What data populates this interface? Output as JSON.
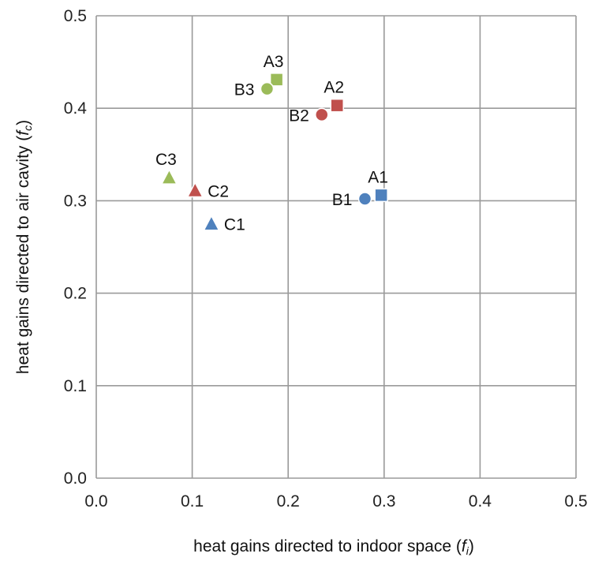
{
  "chart_data": {
    "type": "scatter",
    "xlabel": "heat gains directed to indoor space (",
    "xlabel_sym": "f",
    "xlabel_sub": "i",
    "xlabel_end": ")",
    "ylabel": "heat gains directed to air cavity (",
    "ylabel_sym": "f",
    "ylabel_sub": "c",
    "ylabel_end": ")",
    "xlim": [
      0,
      0.5
    ],
    "ylim": [
      0,
      0.5
    ],
    "x_ticks": [
      "0.0",
      "0.1",
      "0.2",
      "0.3",
      "0.4",
      "0.5"
    ],
    "y_ticks": [
      "0.0",
      "0.1",
      "0.2",
      "0.3",
      "0.4",
      "0.5"
    ],
    "grid": true,
    "points": [
      {
        "label": "A1",
        "x": 0.297,
        "y": 0.306,
        "marker": "square",
        "color": "#4f81bd",
        "label_pos": "above"
      },
      {
        "label": "B1",
        "x": 0.28,
        "y": 0.302,
        "marker": "circle",
        "color": "#4f81bd",
        "label_pos": "left"
      },
      {
        "label": "C1",
        "x": 0.12,
        "y": 0.275,
        "marker": "triangle",
        "color": "#4f81bd",
        "label_pos": "right"
      },
      {
        "label": "A2",
        "x": 0.251,
        "y": 0.403,
        "marker": "square",
        "color": "#c0504d",
        "label_pos": "above"
      },
      {
        "label": "B2",
        "x": 0.235,
        "y": 0.393,
        "marker": "circle",
        "color": "#c0504d",
        "label_pos": "left"
      },
      {
        "label": "C2",
        "x": 0.103,
        "y": 0.311,
        "marker": "triangle",
        "color": "#c0504d",
        "label_pos": "right"
      },
      {
        "label": "A3",
        "x": 0.188,
        "y": 0.431,
        "marker": "square",
        "color": "#9bbb59",
        "label_pos": "above"
      },
      {
        "label": "B3",
        "x": 0.178,
        "y": 0.421,
        "marker": "circle",
        "color": "#9bbb59",
        "label_pos": "left"
      },
      {
        "label": "C3",
        "x": 0.076,
        "y": 0.325,
        "marker": "triangle",
        "color": "#9bbb59",
        "label_pos": "above"
      }
    ]
  }
}
